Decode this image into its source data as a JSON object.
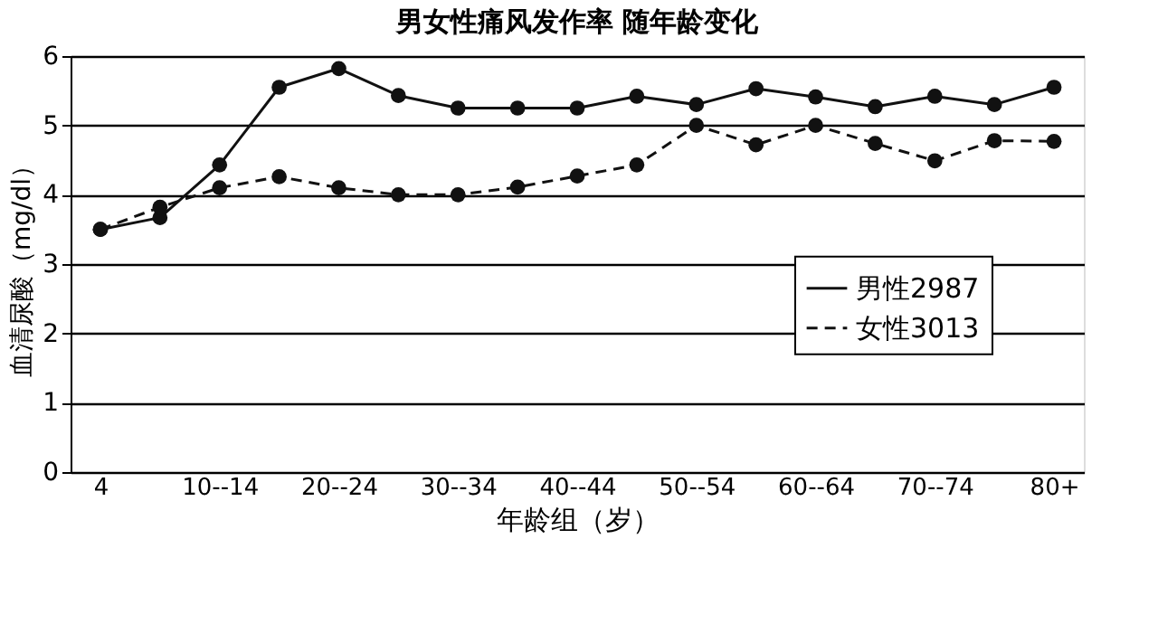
{
  "chart_data": {
    "type": "line",
    "title": "男女性痛风发作率 随年龄变化",
    "xlabel": "年龄组（岁）",
    "ylabel": "血清尿酸（mg/dl）",
    "categories": [
      "4",
      null,
      "10--14",
      null,
      "20--24",
      null,
      "30--34",
      null,
      "40--44",
      null,
      "50--54",
      null,
      "60--64",
      null,
      "70--74",
      null,
      "80+"
    ],
    "series": [
      {
        "name": "男性2987",
        "color": "#111111",
        "line_style": "solid",
        "values": [
          3.5,
          3.67,
          4.43,
          5.55,
          5.82,
          5.43,
          5.25,
          5.25,
          5.25,
          5.42,
          5.3,
          5.53,
          5.41,
          5.27,
          5.42,
          5.3,
          5.55
        ]
      },
      {
        "name": "女性3013",
        "color": "#111111",
        "line_style": "dashed",
        "values": [
          3.5,
          3.82,
          4.1,
          4.26,
          4.1,
          4.0,
          4.0,
          4.11,
          4.27,
          4.43,
          5.0,
          4.72,
          5.0,
          4.74,
          4.49,
          4.78,
          4.77
        ]
      }
    ],
    "ylim": [
      0,
      6
    ],
    "yticks": [
      0,
      1,
      2,
      3,
      4,
      5,
      6
    ],
    "grid": "y",
    "marker": "circle",
    "legend": "right"
  }
}
